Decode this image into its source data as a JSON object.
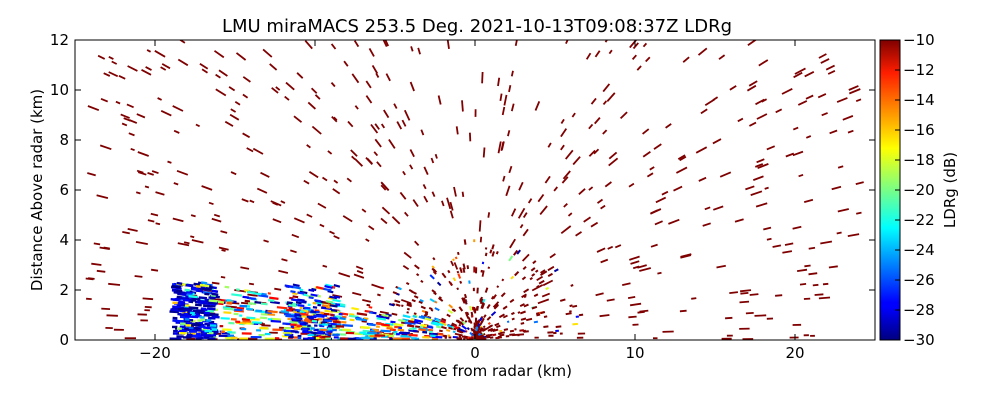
{
  "chart_data": {
    "type": "heatmap",
    "title": "LMU miraMACS 253.5 Deg. 2021-10-13T09:08:37Z  LDRg",
    "xlabel": "Distance from radar (km)",
    "ylabel": "Distance Above radar  (km)",
    "xlim": [
      -25.0,
      25.0
    ],
    "ylim": [
      0,
      12
    ],
    "x_ticks": [
      -20,
      -10,
      0,
      10,
      20
    ],
    "y_ticks": [
      0,
      2,
      4,
      6,
      8,
      10,
      12
    ],
    "colorbar": {
      "label": "LDRg (dB)",
      "range": [
        -30,
        -10
      ],
      "ticks": [
        -30,
        -28,
        -26,
        -24,
        -22,
        -20,
        -18,
        -16,
        -14,
        -12,
        -10
      ],
      "colormap": "jet"
    },
    "grid": false,
    "background_color": "#ffffff"
  }
}
